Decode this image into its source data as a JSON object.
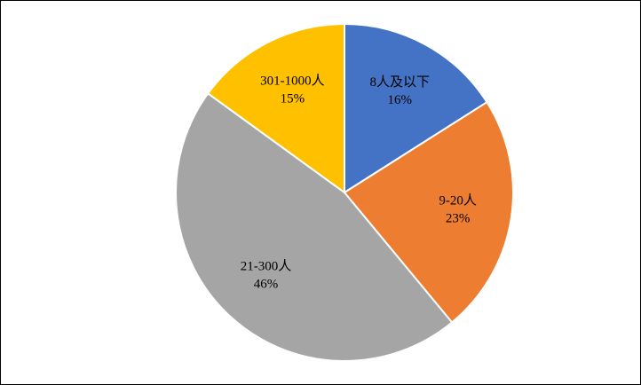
{
  "chart_data": {
    "type": "pie",
    "categories": [
      "8人及以下",
      "9-20人",
      "21-300人",
      "301-1000人"
    ],
    "values": [
      16,
      23,
      46,
      15
    ],
    "value_labels": [
      "16%",
      "23%",
      "46%",
      "15%"
    ],
    "colors": [
      "#4472c4",
      "#ed7d31",
      "#a5a5a5",
      "#ffc000"
    ]
  }
}
